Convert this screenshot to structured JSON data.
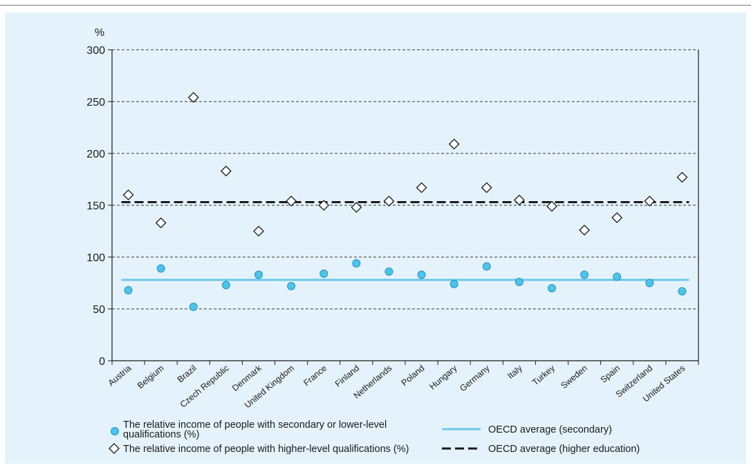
{
  "chart_data": {
    "type": "scatter",
    "ylabel": "%",
    "ylim": [
      0,
      300
    ],
    "yticks": [
      0,
      50,
      100,
      150,
      200,
      250,
      300
    ],
    "grid": "horizontal-dashed",
    "legend_position": "bottom",
    "categories": [
      "Austria",
      "Belgium",
      "Brazil",
      "Czech Republic",
      "Denmark",
      "United Kingdom",
      "France",
      "Finland",
      "Netherlands",
      "Poland",
      "Hungary",
      "Germany",
      "Italy",
      "Turkey",
      "Sweden",
      "Spain",
      "Switzerland",
      "United States"
    ],
    "series": [
      {
        "name": "The relative income of people with secondary or lower-level qualifications (%)",
        "marker": "circle",
        "color": "#4fc3e8",
        "values": [
          68,
          89,
          52,
          73,
          83,
          72,
          84,
          94,
          86,
          83,
          74,
          91,
          76,
          70,
          83,
          81,
          75,
          67
        ]
      },
      {
        "name": "The relative income of people with higher-level qualifications (%)",
        "marker": "diamond",
        "color": "#ffffff",
        "values": [
          160,
          133,
          254,
          183,
          125,
          154,
          150,
          148,
          154,
          167,
          209,
          167,
          155,
          149,
          126,
          138,
          154,
          177
        ]
      }
    ],
    "reference_lines": [
      {
        "name": "OECD average (secondary)",
        "value": 78,
        "style": "solid",
        "color": "#6cc7e6"
      },
      {
        "name": "OECD average (higher education)",
        "value": 153,
        "style": "dashed",
        "color": "#1a1a1a"
      }
    ],
    "legend": {
      "secondary_line1": "The relative income of people with secondary or lower-level",
      "secondary_line2": "qualifications (%)",
      "higher": "The relative income of people with higher-level qualifications (%)",
      "avg_secondary": "OECD average (secondary)",
      "avg_higher": "OECD average (higher education)"
    }
  }
}
